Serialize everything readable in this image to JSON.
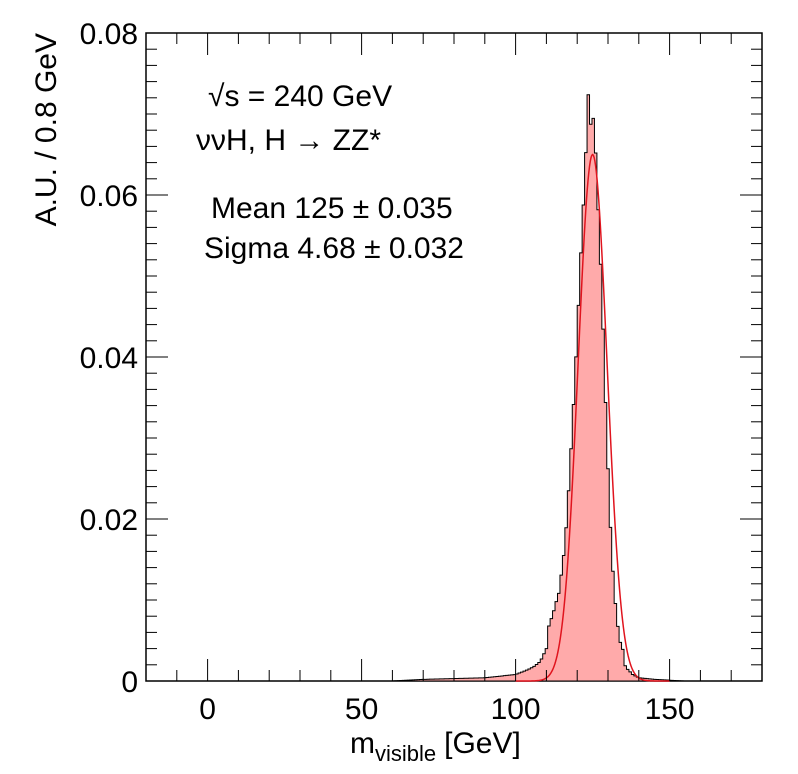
{
  "chart_data": {
    "type": "histogram",
    "title": "",
    "xlabel_main": "m",
    "xlabel_sub": "visible",
    "xlabel_unit": "[GeV]",
    "ylabel": "A.U. / 0.8 GeV",
    "xlim": [
      -20,
      180
    ],
    "ylim": [
      0,
      0.08
    ],
    "x_ticks": [
      0,
      50,
      100,
      150
    ],
    "x_tick_labels": [
      "0",
      "50",
      "100",
      "150"
    ],
    "y_ticks": [
      0,
      0.02,
      0.04,
      0.06,
      0.08
    ],
    "y_tick_labels": [
      "0",
      "0.02",
      "0.04",
      "0.06",
      "0.08"
    ],
    "bin_width": 0.8,
    "fill_color": "#ffaaaa",
    "line_color": "#000000",
    "fit_color": "#e0141e",
    "series": [
      {
        "name": "histogram",
        "x": [
          60,
          70,
          80,
          90,
          100,
          104,
          106,
          108,
          110,
          112,
          114,
          116,
          117,
          118,
          119,
          120,
          121,
          122,
          122.8,
          123.6,
          124.4,
          125.2,
          126,
          127,
          128,
          129,
          130,
          131,
          132,
          133,
          134,
          136,
          138,
          140,
          145,
          150,
          155
        ],
        "values": [
          0,
          0.0002,
          0.0003,
          0.0004,
          0.0008,
          0.0014,
          0.0018,
          0.0024,
          0.004,
          0.0065,
          0.011,
          0.0185,
          0.024,
          0.03,
          0.036,
          0.0425,
          0.05,
          0.057,
          0.0635,
          0.071,
          0.068,
          0.0695,
          0.066,
          0.058,
          0.05,
          0.038,
          0.027,
          0.017,
          0.01,
          0.0055,
          0.003,
          0.0016,
          0.0008,
          0.0004,
          0.0002,
          0.0001,
          0
        ]
      },
      {
        "name": "gaussian fit",
        "mean": 125,
        "sigma": 4.68,
        "amplitude": 0.065
      }
    ],
    "annotations": [
      {
        "text": "√s = 240 GeV"
      },
      {
        "text": "ννH, H → ZZ*"
      },
      {
        "text": "Mean  125 ± 0.035"
      },
      {
        "text": "Sigma  4.68 ± 0.032"
      }
    ]
  }
}
